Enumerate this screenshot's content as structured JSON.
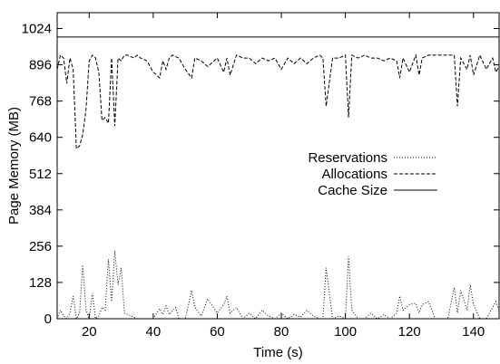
{
  "chart_data": {
    "type": "line",
    "xlabel": "Time (s)",
    "ylabel": "Page Memory (MB)",
    "xlim": [
      10,
      148
    ],
    "ylim": [
      0,
      1080
    ],
    "xticks": [
      20,
      40,
      60,
      80,
      100,
      120,
      140
    ],
    "yticks": [
      0,
      128,
      256,
      384,
      512,
      640,
      768,
      896,
      1024
    ],
    "grid": false,
    "legend_position": "center-right",
    "series": [
      {
        "name": "Reservations",
        "style": "dotted",
        "color": "#000000",
        "x": [
          10,
          11,
          12,
          13,
          14,
          15,
          16,
          17,
          18,
          19,
          20,
          21,
          22,
          23,
          24,
          25,
          26,
          27,
          28,
          29,
          30,
          31,
          35,
          38,
          40,
          42,
          43,
          44,
          45,
          47,
          48,
          50,
          52,
          53,
          55,
          57,
          60,
          62,
          63,
          64,
          66,
          68,
          70,
          72,
          74,
          76,
          78,
          80,
          82,
          84,
          86,
          88,
          90,
          92,
          93,
          94,
          96,
          98,
          100,
          101,
          102,
          104,
          106,
          108,
          110,
          112,
          114,
          116,
          117,
          118,
          120,
          122,
          123,
          124,
          126,
          128,
          130,
          132,
          134,
          135,
          136,
          138,
          139,
          140,
          142,
          144,
          146,
          147,
          148
        ],
        "y": [
          0,
          30,
          10,
          0,
          20,
          80,
          0,
          20,
          190,
          30,
          0,
          90,
          0,
          10,
          40,
          30,
          210,
          60,
          240,
          120,
          180,
          20,
          0,
          0,
          0,
          35,
          15,
          45,
          15,
          40,
          0,
          0,
          100,
          40,
          10,
          70,
          20,
          50,
          80,
          20,
          40,
          0,
          20,
          0,
          30,
          10,
          0,
          20,
          0,
          15,
          5,
          30,
          10,
          0,
          0,
          180,
          0,
          10,
          0,
          220,
          30,
          0,
          0,
          20,
          0,
          15,
          0,
          20,
          80,
          30,
          50,
          55,
          20,
          50,
          60,
          0,
          0,
          0,
          110,
          20,
          100,
          30,
          120,
          50,
          0,
          0,
          40,
          60,
          30
        ]
      },
      {
        "name": "Allocations",
        "style": "dashed",
        "color": "#000000",
        "x": [
          10,
          11,
          12,
          13,
          14,
          15,
          16,
          17,
          18,
          19,
          20,
          21,
          22,
          23,
          24,
          25,
          26,
          27,
          28,
          29,
          30,
          31,
          32,
          34,
          35,
          36,
          38,
          40,
          42,
          43,
          44,
          45,
          46,
          48,
          50,
          52,
          53,
          55,
          57,
          60,
          62,
          63,
          64,
          66,
          68,
          70,
          72,
          74,
          76,
          78,
          80,
          82,
          84,
          86,
          88,
          90,
          92,
          93,
          94,
          96,
          98,
          100,
          101,
          102,
          104,
          106,
          108,
          110,
          112,
          114,
          116,
          117,
          118,
          120,
          122,
          123,
          124,
          126,
          128,
          130,
          132,
          134,
          135,
          136,
          138,
          139,
          140,
          142,
          144,
          146,
          147,
          148
        ],
        "y": [
          880,
          930,
          920,
          830,
          920,
          880,
          600,
          610,
          650,
          740,
          910,
          930,
          920,
          870,
          700,
          710,
          690,
          920,
          680,
          920,
          910,
          930,
          930,
          920,
          930,
          920,
          910,
          870,
          850,
          910,
          880,
          920,
          930,
          920,
          880,
          850,
          920,
          910,
          890,
          920,
          870,
          920,
          860,
          930,
          920,
          920,
          900,
          920,
          910,
          920,
          880,
          920,
          900,
          920,
          900,
          920,
          930,
          920,
          750,
          920,
          920,
          930,
          710,
          930,
          920,
          930,
          920,
          920,
          910,
          920,
          910,
          850,
          920,
          870,
          930,
          860,
          920,
          930,
          930,
          930,
          930,
          930,
          750,
          920,
          880,
          930,
          860,
          930,
          880,
          920,
          870,
          890
        ]
      },
      {
        "name": "Cache Size",
        "style": "solid",
        "color": "#000000",
        "x": [
          10,
          148
        ],
        "y": [
          994,
          994
        ]
      }
    ]
  }
}
